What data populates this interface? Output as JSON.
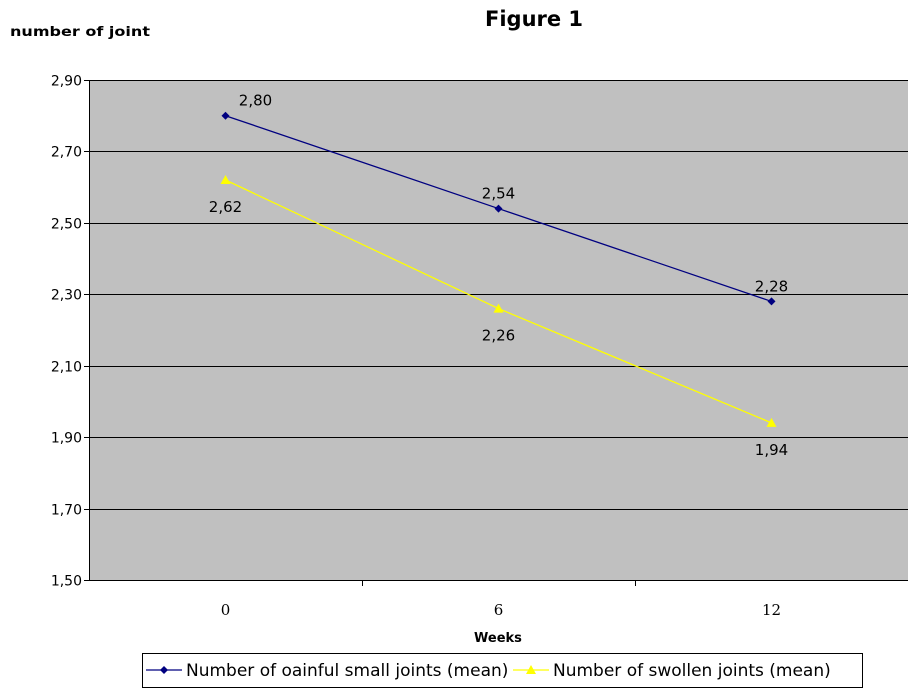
{
  "chart_data": {
    "type": "line",
    "title": "Figure 1",
    "ylabel": "number of joint",
    "xlabel": "Weeks",
    "categories": [
      "0",
      "6",
      "12"
    ],
    "ylim": [
      1.5,
      2.9
    ],
    "yticks": [
      "1,50",
      "1,70",
      "1,90",
      "2,10",
      "2,30",
      "2,50",
      "2,70",
      "2,90"
    ],
    "ytick_values": [
      1.5,
      1.7,
      1.9,
      2.1,
      2.3,
      2.5,
      2.7,
      2.9
    ],
    "grid": true,
    "plot_background": "#c0c0c0",
    "legend_position": "bottom",
    "series": [
      {
        "name": "Number of oainful small joints (mean)",
        "values": [
          2.8,
          2.54,
          2.28
        ],
        "labels": [
          "2,80",
          "2,54",
          "2,28"
        ],
        "label_position": "above",
        "color": "#000080",
        "marker": "diamond"
      },
      {
        "name": "Number of swollen joints (mean)",
        "values": [
          2.62,
          2.26,
          1.94
        ],
        "labels": [
          "2,62",
          "2,26",
          "1,94"
        ],
        "label_position": "below",
        "color": "#ffff00",
        "marker": "triangle"
      }
    ]
  }
}
